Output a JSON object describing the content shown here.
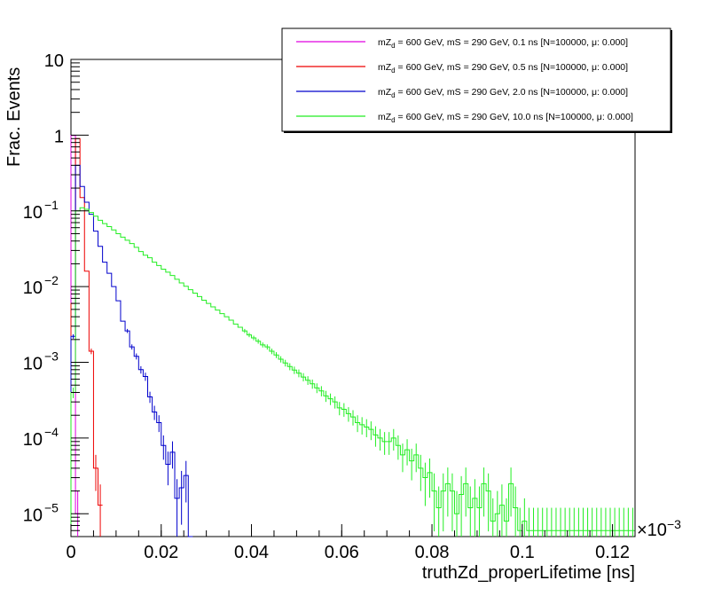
{
  "chart_data": {
    "type": "histogram",
    "title": "",
    "xlabel": "truthZd_properLifetime [ns]",
    "ylabel": "Frac. Events",
    "x_scale_label": "×10",
    "x_scale_exponent": "−3",
    "xlim": [
      0,
      0.125
    ],
    "ylim": [
      5e-06,
      10
    ],
    "y_scale": "log",
    "grid": false,
    "legend_position": "top-right",
    "x_ticks": [
      {
        "value": 0,
        "label": "0"
      },
      {
        "value": 0.02,
        "label": "0.02"
      },
      {
        "value": 0.04,
        "label": "0.04"
      },
      {
        "value": 0.06,
        "label": "0.06"
      },
      {
        "value": 0.08,
        "label": "0.08"
      },
      {
        "value": 0.1,
        "label": "0.1"
      },
      {
        "value": 0.12,
        "label": "0.12"
      }
    ],
    "y_ticks": [
      {
        "value": 1e-05,
        "mantissa": "10",
        "exponent": "−5"
      },
      {
        "value": 0.0001,
        "mantissa": "10",
        "exponent": "−4"
      },
      {
        "value": 0.001,
        "mantissa": "10",
        "exponent": "−3"
      },
      {
        "value": 0.01,
        "mantissa": "10",
        "exponent": "−2"
      },
      {
        "value": 0.1,
        "mantissa": "10",
        "exponent": "−1"
      },
      {
        "value": 1,
        "mantissa": "1",
        "exponent": ""
      },
      {
        "value": 10,
        "mantissa": "10",
        "exponent": ""
      }
    ],
    "series": [
      {
        "name": "mZ_d = 600 GeV, mS = 290 GeV, 0.1 ns [N=100000, μ: 0.000]",
        "legend_prefix": "mZ",
        "legend_sub": "d",
        "legend_rest": " = 600 GeV, mS = 290 GeV, 0.1 ns [N=100000, μ: 0.000]",
        "color": "#e100e1",
        "bin_width": 0.001,
        "x_start": 0,
        "values": [
          0.99,
          1e-05
        ]
      },
      {
        "name": "mZ_d = 600 GeV, mS = 290 GeV, 0.5 ns [N=100000, μ: 0.000]",
        "legend_prefix": "mZ",
        "legend_sub": "d",
        "legend_rest": " = 600 GeV, mS = 290 GeV, 0.5 ns [N=100000, μ: 0.000]",
        "color": "#ee0000",
        "bin_width": 0.001,
        "x_start": 0,
        "values": [
          0.006,
          0.9,
          0.15,
          0.016,
          0.0014,
          4e-05,
          1.3e-05
        ]
      },
      {
        "name": "mZ_d = 600 GeV, mS = 290 GeV, 2.0 ns [N=100000, μ: 0.000]",
        "legend_prefix": "mZ",
        "legend_sub": "d",
        "legend_rest": " = 600 GeV, mS = 290 GeV, 2.0 ns [N=100000, μ: 0.000]",
        "color": "#0000cc",
        "bin_width": 0.001,
        "x_start": 0,
        "values": [
          0.0022,
          0.4,
          0.21,
          0.13,
          0.09,
          0.054,
          0.034,
          0.021,
          0.015,
          0.01,
          0.0065,
          0.0035,
          0.0026,
          0.0016,
          0.0012,
          0.0008,
          0.00065,
          0.00035,
          0.00022,
          0.00016,
          8e-05,
          4.5e-05,
          6.5e-05,
          1.6e-05,
          2.2e-05,
          3.2e-05,
          0
        ]
      },
      {
        "name": "mZ_d = 600 GeV, mS = 290 GeV, 10.0 ns [N=100000, μ: 0.000]",
        "legend_prefix": "mZ",
        "legend_sub": "d",
        "legend_rest": " = 600 GeV, mS = 290 GeV, 10.0 ns [N=100000, μ: 0.000]",
        "color": "#22ee22",
        "bin_width": 0.001,
        "x_start": 0,
        "values": [
          0.0004,
          0.1,
          0.11,
          0.105,
          0.095,
          0.085,
          0.075,
          0.068,
          0.062,
          0.056,
          0.05,
          0.045,
          0.041,
          0.037,
          0.033,
          0.029,
          0.026,
          0.024,
          0.021,
          0.019,
          0.017,
          0.0155,
          0.014,
          0.0125,
          0.0112,
          0.0101,
          0.0091,
          0.0082,
          0.0074,
          0.0066,
          0.006,
          0.0054,
          0.0049,
          0.0044,
          0.004,
          0.0036,
          0.0032,
          0.0029,
          0.0026,
          0.0023,
          0.0021,
          0.0019,
          0.0017,
          0.0016,
          0.0014,
          0.00125,
          0.0011,
          0.00098,
          0.00088,
          0.00079,
          0.00072,
          0.00064,
          0.00058,
          0.00052,
          0.00046,
          0.00042,
          0.00036,
          0.00033,
          0.0003,
          0.00025,
          0.00024,
          0.00021,
          0.00019,
          0.00016,
          0.00015,
          0.00014,
          0.00013,
          0.00011,
          0.0001,
          9e-05,
          9e-05,
          0.0001,
          8e-05,
          6e-05,
          7e-05,
          5e-05,
          6e-05,
          4e-05,
          3e-05,
          3.5e-05,
          2e-05,
          1.2e-05,
          2e-05,
          2.5e-05,
          2e-05,
          1e-05,
          1.8e-05,
          2.5e-05,
          1.2e-05,
          1.6e-05,
          1.2e-05,
          2.5e-05,
          2e-05,
          8e-06,
          1e-05,
          1.3e-05,
          8e-06,
          2.5e-05,
          1.2e-05,
          6e-06,
          8e-06,
          6e-06,
          6e-06,
          6e-06,
          6e-06,
          6e-06,
          6e-06,
          6e-06,
          6e-06,
          6e-06,
          6e-06,
          6e-06,
          6e-06,
          6e-06,
          6e-06,
          6e-06,
          6e-06,
          6e-06,
          6e-06,
          6e-06,
          6e-06,
          6e-06,
          6e-06,
          6e-06,
          6e-06
        ]
      }
    ]
  }
}
